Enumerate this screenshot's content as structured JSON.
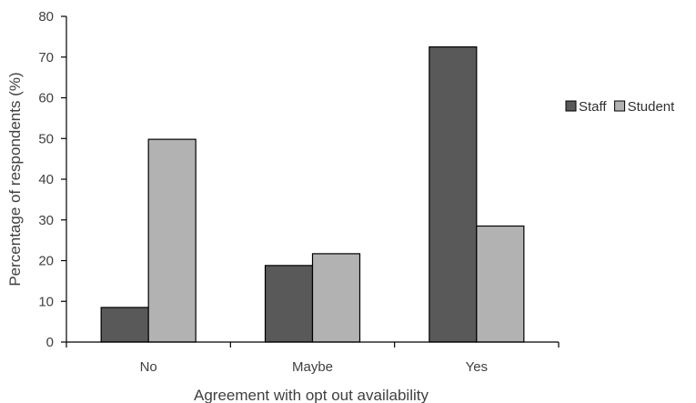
{
  "chart_data": {
    "type": "bar",
    "categories": [
      "No",
      "Maybe",
      "Yes"
    ],
    "series": [
      {
        "name": "Staff",
        "values": [
          8.5,
          18.8,
          72.5
        ],
        "color": "#595959"
      },
      {
        "name": "Student",
        "values": [
          49.8,
          21.7,
          28.5
        ],
        "color": "#b2b2b2"
      }
    ],
    "title": "",
    "xlabel": "Agreement with opt out availability",
    "ylabel": "Percentage of respondents (%)",
    "ylim": [
      0,
      80
    ],
    "yticks": [
      0,
      10,
      20,
      30,
      40,
      50,
      60,
      70,
      80
    ],
    "grid": false,
    "legend_position": "right",
    "bar_edge_color": "#000000"
  }
}
